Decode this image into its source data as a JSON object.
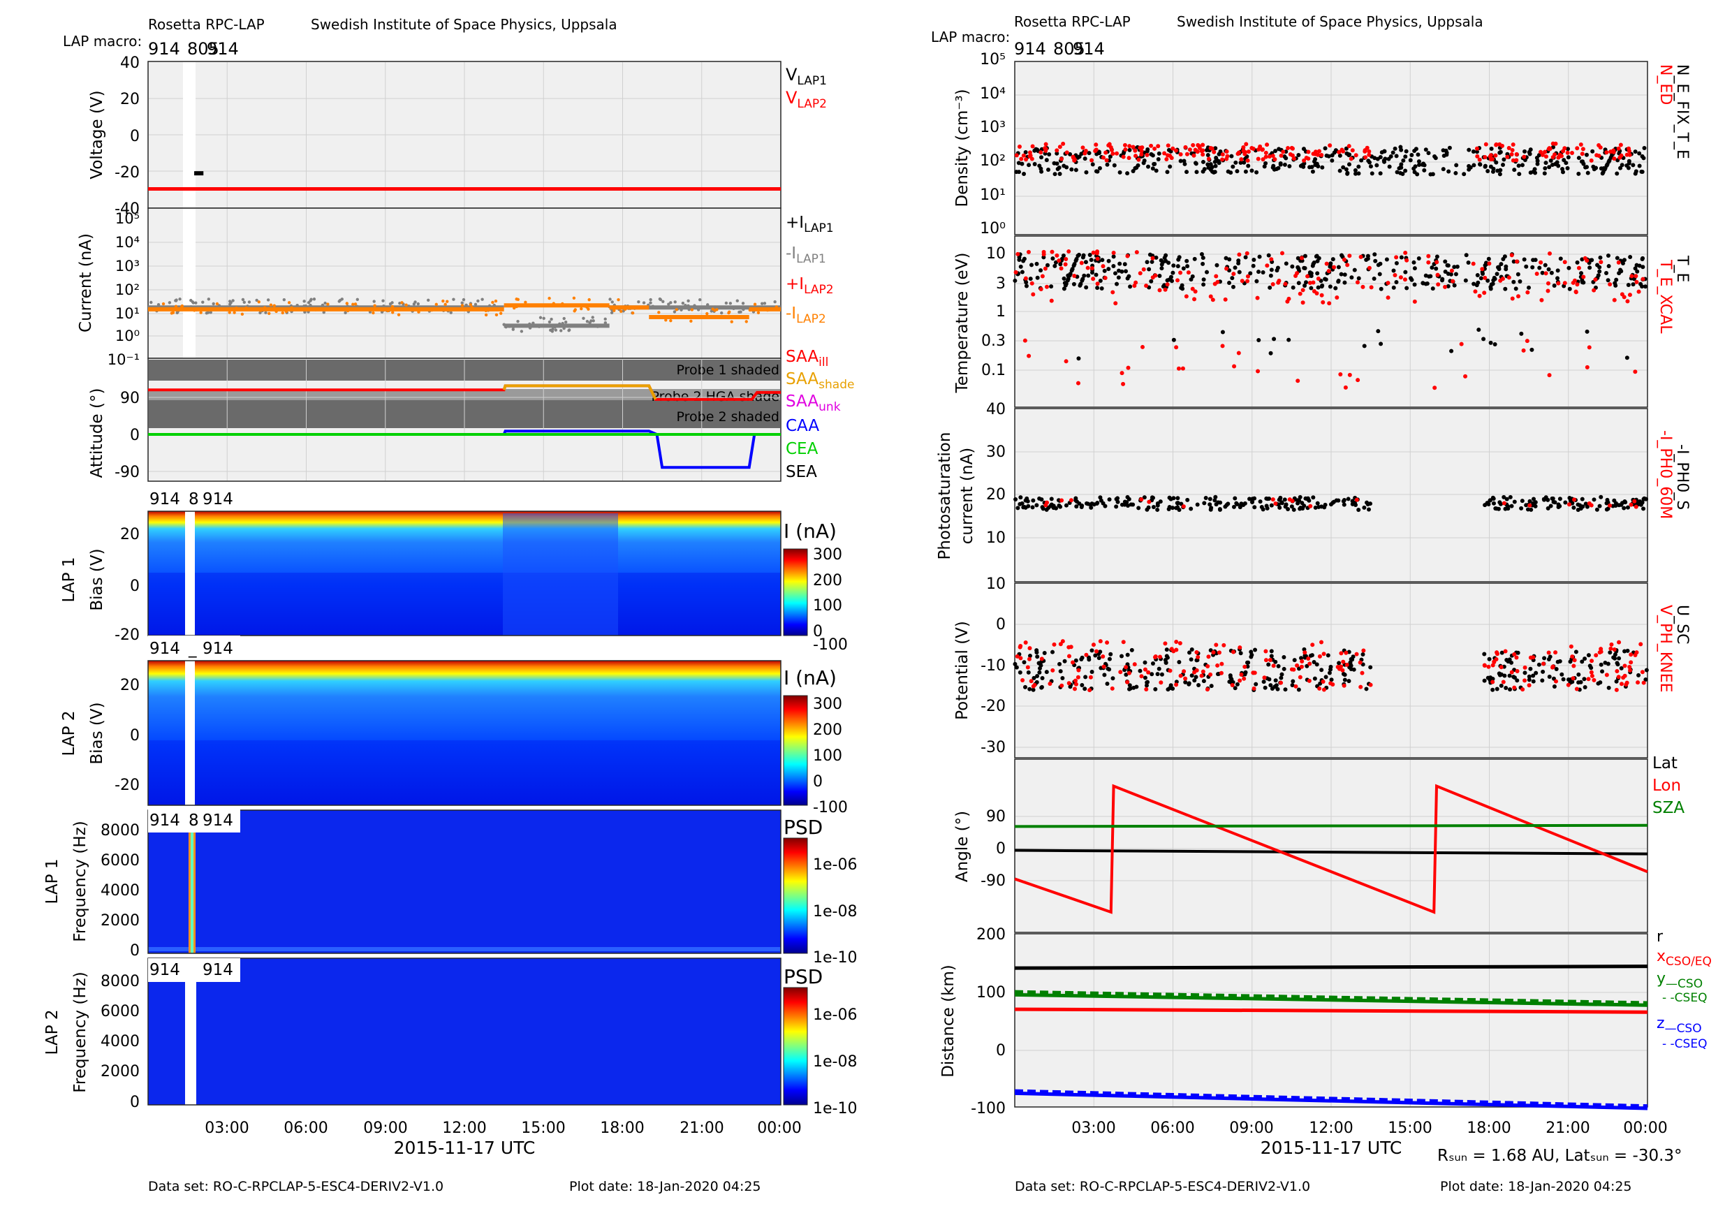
{
  "left": {
    "header": {
      "title": "Rosetta RPC-LAP",
      "institute": "Swedish Institute of Space Physics, Uppsala",
      "macro_label": "LAP macro:",
      "macros": [
        "914",
        "805",
        "914"
      ]
    },
    "panels": {
      "voltage": {
        "ylabel": "Voltage (V)",
        "yticks": [
          "40",
          "20",
          "0",
          "-20",
          "-40"
        ],
        "legend": [
          {
            "text": "V",
            "sub": "LAP1",
            "color": "#000000"
          },
          {
            "text": "V",
            "sub": "LAP2",
            "color": "#ff0000"
          }
        ],
        "series": [
          {
            "name": "V LAP1",
            "color": "#000000",
            "points": [
              [
                1.75,
                -21
              ],
              [
                2.1,
                -21
              ]
            ]
          },
          {
            "name": "V LAP2",
            "color": "#ff0000",
            "points": [
              [
                0,
                -29.5
              ],
              [
                1.75,
                -29.5
              ],
              [
                2.1,
                -29.5
              ],
              [
                24,
                -29.5
              ]
            ]
          }
        ]
      },
      "current": {
        "ylabel": "Current (nA)",
        "yticks": [
          "10⁵",
          "10⁴",
          "10³",
          "10²",
          "10¹",
          "10⁰",
          "10⁻¹"
        ],
        "legend": [
          {
            "text": "+I",
            "sub": "LAP1",
            "color": "#000000"
          },
          {
            "text": "-I",
            "sub": "LAP1",
            "color": "#808080"
          },
          {
            "text": "+I",
            "sub": "LAP2",
            "color": "#ff0000"
          },
          {
            "text": "-I",
            "sub": "LAP2",
            "color": "#ff8000"
          }
        ],
        "levels": [
          {
            "name": "-I LAP1",
            "color": "#808080",
            "segments": [
              [
                0,
                13.5,
                18
              ],
              [
                13.5,
                17.5,
                3
              ],
              [
                17.5,
                24,
                18
              ]
            ]
          },
          {
            "name": "-I LAP2",
            "color": "#ff8000",
            "segments": [
              [
                0,
                13.5,
                15
              ],
              [
                13.5,
                17.5,
                22
              ],
              [
                17.5,
                19,
                18
              ],
              [
                19,
                22.8,
                7
              ],
              [
                22.8,
                24,
                15
              ]
            ]
          }
        ]
      },
      "attitude": {
        "ylabel": "Attitude (°)",
        "yticks": [
          "90",
          "0",
          "-90"
        ],
        "bands": [
          {
            "label": "Probe 1 shaded",
            "from": 135,
            "to": 105
          },
          {
            "label": "Probe 2 HGA shade",
            "from": 95,
            "to": 60
          },
          {
            "label": "Probe 2 shaded",
            "from": 80,
            "to": 45
          }
        ],
        "legend": [
          {
            "text": "SAA",
            "sub": "ill",
            "color": "#ff0000"
          },
          {
            "text": "SAA",
            "sub": "shade",
            "color": "#e8a000"
          },
          {
            "text": "SAA",
            "sub": "unk",
            "color": "#e000e0"
          },
          {
            "text": "CAA",
            "sub": "",
            "color": "#0000ff"
          },
          {
            "text": "CEA",
            "sub": "",
            "color": "#00d000"
          },
          {
            "text": "SEA",
            "sub": "",
            "color": "#000000"
          }
        ],
        "series": [
          {
            "name": "SAA ill",
            "color": "#ff0000",
            "points": [
              [
                0,
                108
              ],
              [
                13.5,
                108
              ],
              [
                13.55,
                118
              ],
              [
                19,
                118
              ],
              [
                19.25,
                85
              ],
              [
                22.9,
                85
              ],
              [
                23.1,
                102
              ],
              [
                24,
                102
              ]
            ]
          },
          {
            "name": "SAA shade",
            "color": "#e8a000",
            "points": [
              [
                13.5,
                108
              ],
              [
                13.55,
                118
              ],
              [
                19,
                118
              ],
              [
                19.25,
                85
              ]
            ]
          },
          {
            "name": "CAA",
            "color": "#0000ff",
            "points": [
              [
                0,
                0
              ],
              [
                13.5,
                0
              ],
              [
                13.55,
                8
              ],
              [
                19,
                8
              ],
              [
                19.3,
                0
              ],
              [
                19.5,
                -80
              ],
              [
                22.8,
                -80
              ],
              [
                23,
                0
              ],
              [
                24,
                0
              ]
            ]
          },
          {
            "name": "CEA",
            "color": "#00d000",
            "points": [
              [
                0,
                0
              ],
              [
                24,
                0
              ]
            ]
          }
        ]
      },
      "spec1": {
        "ylabel": "LAP 1",
        "ylabel2": "Bias (V)",
        "yticks": [
          "20",
          "0",
          "-20"
        ],
        "cb_label": "I (nA)",
        "cb_ticks": [
          "300",
          "200",
          "100",
          "0",
          "-100"
        ],
        "macros": [
          "914",
          "8",
          "914"
        ]
      },
      "spec2": {
        "ylabel": "LAP 2",
        "ylabel2": "Bias (V)",
        "yticks": [
          "20",
          "0",
          "-20"
        ],
        "cb_label": "I (nA)",
        "cb_ticks": [
          "300",
          "200",
          "100",
          "0",
          "-100"
        ],
        "macros": [
          "914",
          "_",
          "914"
        ]
      },
      "psd1": {
        "ylabel": "LAP 1",
        "ylabel2": "Frequency (Hz)",
        "yticks": [
          "8000",
          "6000",
          "4000",
          "2000",
          "0"
        ],
        "cb_label": "PSD",
        "cb_ticks": [
          "1e-06",
          "1e-08",
          "1e-10"
        ],
        "macros": [
          "914",
          "8",
          "914"
        ]
      },
      "psd2": {
        "ylabel": "LAP 2",
        "ylabel2": "Frequency (Hz)",
        "yticks": [
          "8000",
          "6000",
          "4000",
          "2000",
          "0"
        ],
        "cb_label": "PSD",
        "cb_ticks": [
          "1e-06",
          "1e-08",
          "1e-10"
        ],
        "macros": [
          "914",
          "",
          "914"
        ]
      }
    },
    "xticks": [
      "03:00",
      "06:00",
      "09:00",
      "12:00",
      "15:00",
      "18:00",
      "21:00",
      "00:00"
    ],
    "xlabel": "2015-11-17 UTC",
    "footer_dataset": "Data set: RO-C-RPCLAP-5-ESC4-DERIV2-V1.0",
    "footer_plotdate": "Plot date: 18-Jan-2020 04:25"
  },
  "right": {
    "header": {
      "title": "Rosetta RPC-LAP",
      "institute": "Swedish Institute of Space Physics, Uppsala",
      "macro_label": "LAP macro:",
      "macros": [
        "914",
        "805",
        "914"
      ]
    },
    "panels": {
      "density": {
        "ylabel": "Density (cm⁻³)",
        "yticks": [
          "10⁵",
          "10⁴",
          "10³",
          "10²",
          "10¹",
          "10⁰"
        ],
        "label_red": "N_ED",
        "label_black": "N_E_FIX_T_E"
      },
      "temperature": {
        "ylabel": "Temperature (eV)",
        "yticks": [
          "10",
          "3",
          "1",
          "0.3",
          "0.1"
        ],
        "label_red": "T_E_XCAL",
        "label_black": "T_E"
      },
      "photo": {
        "ylabel": "Photosaturation",
        "ylabel2": "current (nA)",
        "yticks": [
          "40",
          "30",
          "20",
          "10"
        ],
        "label_red": "-I_PH0_60M",
        "label_black": "-I_PH0_S"
      },
      "potential": {
        "ylabel": "Potential (V)",
        "yticks": [
          "10",
          "0",
          "-10",
          "-20",
          "-30"
        ],
        "label_red": "V_PH_KNEE",
        "label_black": "U_SC"
      },
      "angle": {
        "ylabel": "Angle (°)",
        "yticks": [
          "90",
          "0",
          "-90"
        ],
        "legend": [
          {
            "text": "Lat",
            "color": "#000000"
          },
          {
            "text": "Lon",
            "color": "#ff0000"
          },
          {
            "text": "SZA",
            "color": "#008000"
          }
        ],
        "series": [
          {
            "name": "Lat",
            "color": "#000000",
            "points": [
              [
                0,
                -5
              ],
              [
                24,
                -15
              ]
            ]
          },
          {
            "name": "Lon",
            "color": "#ff0000",
            "points": [
              [
                0,
                -85
              ],
              [
                3.65,
                -178
              ],
              [
                3.75,
                175
              ],
              [
                15.9,
                -178
              ],
              [
                16.0,
                175
              ],
              [
                24,
                -65
              ]
            ]
          },
          {
            "name": "SZA",
            "color": "#008000",
            "points": [
              [
                0,
                62
              ],
              [
                24,
                65
              ]
            ]
          }
        ]
      },
      "distance": {
        "ylabel": "Distance (km)",
        "yticks": [
          "200",
          "100",
          "0",
          "-100"
        ],
        "legend": [
          {
            "text": "r",
            "sub": "",
            "color": "#000000"
          },
          {
            "text": "x",
            "sub": "CSO/EQ",
            "color": "#ff0000"
          },
          {
            "text": "y",
            "sub": "—CSO",
            "color": "#008000"
          },
          {
            "text": "",
            "sub": "- -CSEQ",
            "color": "#008000"
          },
          {
            "text": "z",
            "sub": "—CSO",
            "color": "#0000ff"
          },
          {
            "text": "",
            "sub": "- -CSEQ",
            "color": "#0000ff"
          }
        ],
        "series": [
          {
            "name": "r",
            "color": "#000000",
            "dash": "",
            "points": [
              [
                0,
                142
              ],
              [
                24,
                145
              ]
            ]
          },
          {
            "name": "x",
            "color": "#ff0000",
            "dash": "",
            "points": [
              [
                0,
                71
              ],
              [
                24,
                66
              ]
            ]
          },
          {
            "name": "y CSO",
            "color": "#008000",
            "dash": "",
            "points": [
              [
                0,
                96
              ],
              [
                24,
                78
              ]
            ]
          },
          {
            "name": "y CSEQ",
            "color": "#008000",
            "dash": "12 6",
            "points": [
              [
                0,
                101
              ],
              [
                24,
                82
              ]
            ]
          },
          {
            "name": "z CSO",
            "color": "#0000ff",
            "dash": "",
            "points": [
              [
                0,
                -74
              ],
              [
                24,
                -100
              ]
            ]
          },
          {
            "name": "z CSEQ",
            "color": "#0000ff",
            "dash": "12 6",
            "points": [
              [
                0,
                -70
              ],
              [
                24,
                -96
              ]
            ]
          }
        ]
      }
    },
    "xticks": [
      "03:00",
      "06:00",
      "09:00",
      "12:00",
      "15:00",
      "18:00",
      "21:00",
      "00:00"
    ],
    "xlabel": "2015-11-17 UTC",
    "info": "Rₛᵤₙ = 1.68 AU, Latₛᵤₙ = -30.3°",
    "footer_dataset": "Data set: RO-C-RPCLAP-5-ESC4-DERIV2-V1.0",
    "footer_plotdate": "Plot date: 18-Jan-2020 04:25"
  },
  "chart_data": [
    {
      "type": "line",
      "title": "Voltage",
      "ylabel": "Voltage (V)",
      "xlabel": "2015-11-17 UTC",
      "ylim": [
        -40,
        40
      ],
      "series": [
        {
          "name": "V LAP1",
          "x": [
            "01:45",
            "02:06"
          ],
          "values": [
            -21,
            -21
          ]
        },
        {
          "name": "V LAP2",
          "x": [
            "00:00",
            "24:00"
          ],
          "values": [
            -29.5,
            -29.5
          ]
        }
      ]
    },
    {
      "type": "scatter",
      "ylabel": "Current (nA)",
      "yscale": "log",
      "ylim": [
        0.1,
        100000
      ],
      "series": [
        {
          "name": "-I LAP1",
          "typical": 18
        },
        {
          "name": "-I LAP2",
          "typical": 15
        }
      ]
    },
    {
      "type": "line",
      "ylabel": "Attitude (°)",
      "series": [
        {
          "name": "SAA",
          "x": [
            "00:00",
            "13:30",
            "13:33",
            "19:00",
            "19:15",
            "22:54",
            "23:06",
            "24:00"
          ],
          "values": [
            108,
            108,
            118,
            118,
            85,
            85,
            102,
            102
          ]
        },
        {
          "name": "CAA",
          "x": [
            "00:00",
            "13:30",
            "13:33",
            "19:00",
            "19:30",
            "22:48",
            "23:00",
            "24:00"
          ],
          "values": [
            0,
            0,
            8,
            8,
            -80,
            -80,
            0,
            0
          ]
        },
        {
          "name": "CEA",
          "x": [
            "00:00",
            "24:00"
          ],
          "values": [
            0,
            0
          ]
        }
      ]
    },
    {
      "type": "heatmap",
      "ylabel": "LAP 1 Bias (V)",
      "colorbar": "I (nA)",
      "clim": [
        -100,
        350
      ]
    },
    {
      "type": "heatmap",
      "ylabel": "LAP 2 Bias (V)",
      "colorbar": "I (nA)",
      "clim": [
        -100,
        350
      ]
    },
    {
      "type": "heatmap",
      "ylabel": "LAP 1 Frequency (Hz)",
      "colorbar": "PSD",
      "clim": [
        "1e-10",
        "1e-05"
      ]
    },
    {
      "type": "heatmap",
      "ylabel": "LAP 2 Frequency (Hz)",
      "colorbar": "PSD",
      "clim": [
        "1e-10",
        "1e-05"
      ]
    },
    {
      "type": "scatter",
      "ylabel": "Density (cm-3)",
      "yscale": "log",
      "series": [
        {
          "name": "N_ED",
          "typical": 200
        },
        {
          "name": "N_E_FIX_T_E",
          "typical": 150
        }
      ]
    },
    {
      "type": "scatter",
      "ylabel": "Temperature (eV)",
      "yscale": "log",
      "series": [
        {
          "name": "T_E_XCAL",
          "typical": 5
        },
        {
          "name": "T_E",
          "typical": 5
        }
      ]
    },
    {
      "type": "scatter",
      "ylabel": "Photosaturation current (nA)",
      "series": [
        {
          "name": "-I_PH0_60M",
          "typical": 18
        },
        {
          "name": "-I_PH0_S",
          "typical": 18
        }
      ]
    },
    {
      "type": "scatter",
      "ylabel": "Potential (V)",
      "series": [
        {
          "name": "V_PH_KNEE",
          "typical": -10
        },
        {
          "name": "U_SC",
          "typical": -11
        }
      ]
    },
    {
      "type": "line",
      "ylabel": "Angle (°)",
      "series": [
        {
          "name": "Lat",
          "x": [
            "00:00",
            "24:00"
          ],
          "values": [
            -5,
            -15
          ]
        },
        {
          "name": "Lon",
          "x": [
            "00:00",
            "03:39",
            "03:45",
            "15:54",
            "16:00",
            "24:00"
          ],
          "values": [
            -85,
            -178,
            175,
            -178,
            175,
            -65
          ]
        },
        {
          "name": "SZA",
          "x": [
            "00:00",
            "24:00"
          ],
          "values": [
            62,
            65
          ]
        }
      ]
    },
    {
      "type": "line",
      "ylabel": "Distance (km)",
      "ylim": [
        -100,
        200
      ],
      "series": [
        {
          "name": "r",
          "values": [
            142,
            145
          ]
        },
        {
          "name": "x CSO/EQ",
          "values": [
            71,
            66
          ]
        },
        {
          "name": "y CSO",
          "values": [
            96,
            78
          ]
        },
        {
          "name": "y CSEQ",
          "values": [
            101,
            82
          ]
        },
        {
          "name": "z CSO",
          "values": [
            -74,
            -100
          ]
        },
        {
          "name": "z CSEQ",
          "values": [
            -70,
            -96
          ]
        }
      ]
    }
  ]
}
